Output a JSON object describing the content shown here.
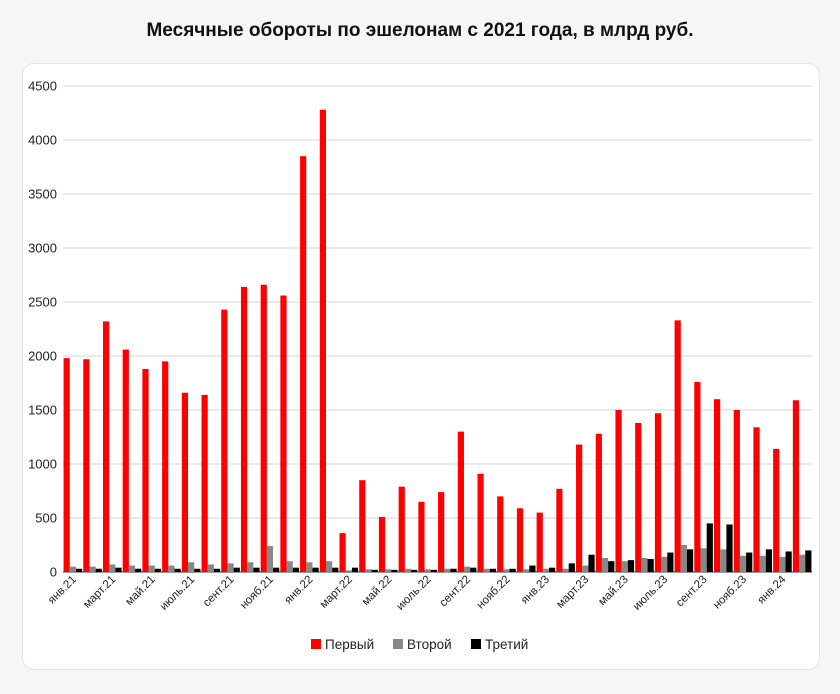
{
  "chart_data": {
    "type": "bar",
    "title": "Месячные обороты по эшелонам с 2021 года, в млрд руб.",
    "ylim": [
      0,
      4500
    ],
    "yticks": [
      0,
      500,
      1000,
      1500,
      2000,
      2500,
      3000,
      3500,
      4000,
      4500
    ],
    "grid": true,
    "legend_position": "bottom",
    "categories": [
      "янв.21",
      "фев.21",
      "март.21",
      "апр.21",
      "май.21",
      "июнь.21",
      "июль.21",
      "авг.21",
      "сент.21",
      "окт.21",
      "нояб.21",
      "дек.21",
      "янв.22",
      "фев.22",
      "март.22",
      "апр.22",
      "май.22",
      "июнь.22",
      "июль.22",
      "авг.22",
      "сент.22",
      "окт.22",
      "нояб.22",
      "дек.22",
      "янв.23",
      "фев.23",
      "март.23",
      "апр.23",
      "май.23",
      "июнь.23",
      "июль.23",
      "авг.23",
      "сент.23",
      "окт.23",
      "нояб.23",
      "дек.23",
      "янв.24",
      "фев.24"
    ],
    "xtick_labels": [
      "янв.21",
      "",
      "март.21",
      "",
      "май.21",
      "",
      "июль.21",
      "",
      "сент.21",
      "",
      "нояб.21",
      "",
      "янв.22",
      "",
      "март.22",
      "",
      "май.22",
      "",
      "июль.22",
      "",
      "сент.22",
      "",
      "нояб.22",
      "",
      "янв.23",
      "",
      "март.23",
      "",
      "май.23",
      "",
      "июль.23",
      "",
      "сент.23",
      "",
      "нояб.23",
      "",
      "янв.24",
      ""
    ],
    "series": [
      {
        "name": "Первый",
        "color": "#ff0000",
        "values": [
          1980,
          1970,
          2320,
          2060,
          1880,
          1950,
          1660,
          1640,
          2430,
          2640,
          2660,
          2560,
          3850,
          4280,
          360,
          850,
          510,
          790,
          650,
          740,
          1300,
          910,
          700,
          590,
          550,
          770,
          1180,
          1280,
          1500,
          1380,
          1470,
          2330,
          1760,
          1600,
          1500,
          1340,
          1140,
          1590
        ]
      },
      {
        "name": "Второй",
        "color": "#888888",
        "values": [
          50,
          50,
          70,
          60,
          60,
          60,
          90,
          70,
          80,
          90,
          240,
          100,
          90,
          100,
          15,
          25,
          25,
          30,
          25,
          30,
          50,
          30,
          25,
          25,
          30,
          30,
          60,
          130,
          100,
          130,
          140,
          250,
          220,
          210,
          150,
          150,
          140,
          160
        ]
      },
      {
        "name": "Третий",
        "color": "#000000",
        "values": [
          30,
          30,
          40,
          30,
          30,
          30,
          30,
          30,
          40,
          40,
          40,
          40,
          40,
          40,
          40,
          20,
          20,
          20,
          20,
          30,
          40,
          30,
          30,
          60,
          40,
          80,
          160,
          100,
          110,
          120,
          180,
          210,
          450,
          440,
          180,
          210,
          190,
          200
        ]
      }
    ]
  }
}
